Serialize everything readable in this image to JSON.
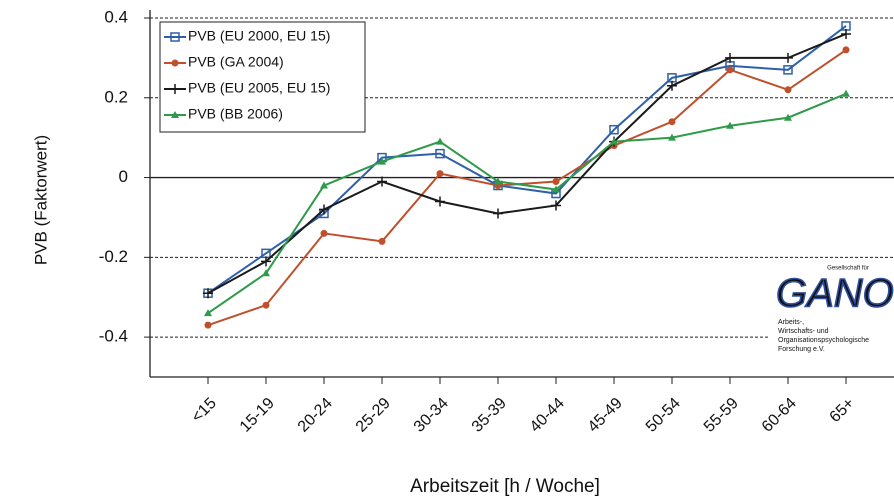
{
  "chart_data": {
    "type": "line",
    "ylabel": "PVB (Faktorwert)",
    "xlabel": "Arbeitszeit [h / Woche]",
    "categories": [
      "<15",
      "15-19",
      "20-24",
      "25-29",
      "30-34",
      "35-39",
      "40-44",
      "45-49",
      "50-54",
      "55-59",
      "60-64",
      "65+"
    ],
    "series": [
      {
        "name": "PVB (EU 2000, EU 15)",
        "color": "#2f5fa8",
        "marker": "square",
        "values": [
          -0.29,
          -0.19,
          -0.09,
          0.05,
          0.06,
          -0.02,
          -0.04,
          0.12,
          0.25,
          0.28,
          0.27,
          0.38
        ]
      },
      {
        "name": "PVB (GA 2004)",
        "color": "#c0502d",
        "marker": "diamond",
        "values": [
          -0.37,
          -0.32,
          -0.14,
          -0.16,
          0.01,
          -0.02,
          -0.01,
          0.08,
          0.14,
          0.27,
          0.22,
          0.32
        ]
      },
      {
        "name": "PVB (EU 2005, EU 15)",
        "color": "#1a1a1a",
        "marker": "plus",
        "values": [
          -0.29,
          -0.21,
          -0.08,
          -0.01,
          -0.06,
          -0.09,
          -0.07,
          0.09,
          0.23,
          0.3,
          0.3,
          0.36
        ]
      },
      {
        "name": "PVB (BB 2006)",
        "color": "#2e9a4a",
        "marker": "triangle",
        "values": [
          -0.34,
          -0.24,
          -0.02,
          0.04,
          0.09,
          -0.01,
          -0.03,
          0.09,
          0.1,
          0.13,
          0.15,
          0.21
        ]
      }
    ],
    "ylim": [
      -0.5,
      0.4
    ],
    "yticks": [
      -0.4,
      -0.2,
      0,
      0.2,
      0.4
    ],
    "grid": true,
    "legend": "top-left",
    "logo": {
      "name": "GANO",
      "top": "Gesellschaft für",
      "lines": [
        "Arbeits-,",
        "Wirtschafts- und",
        "Organisationspsychologische",
        "Forschung e.V."
      ]
    }
  }
}
